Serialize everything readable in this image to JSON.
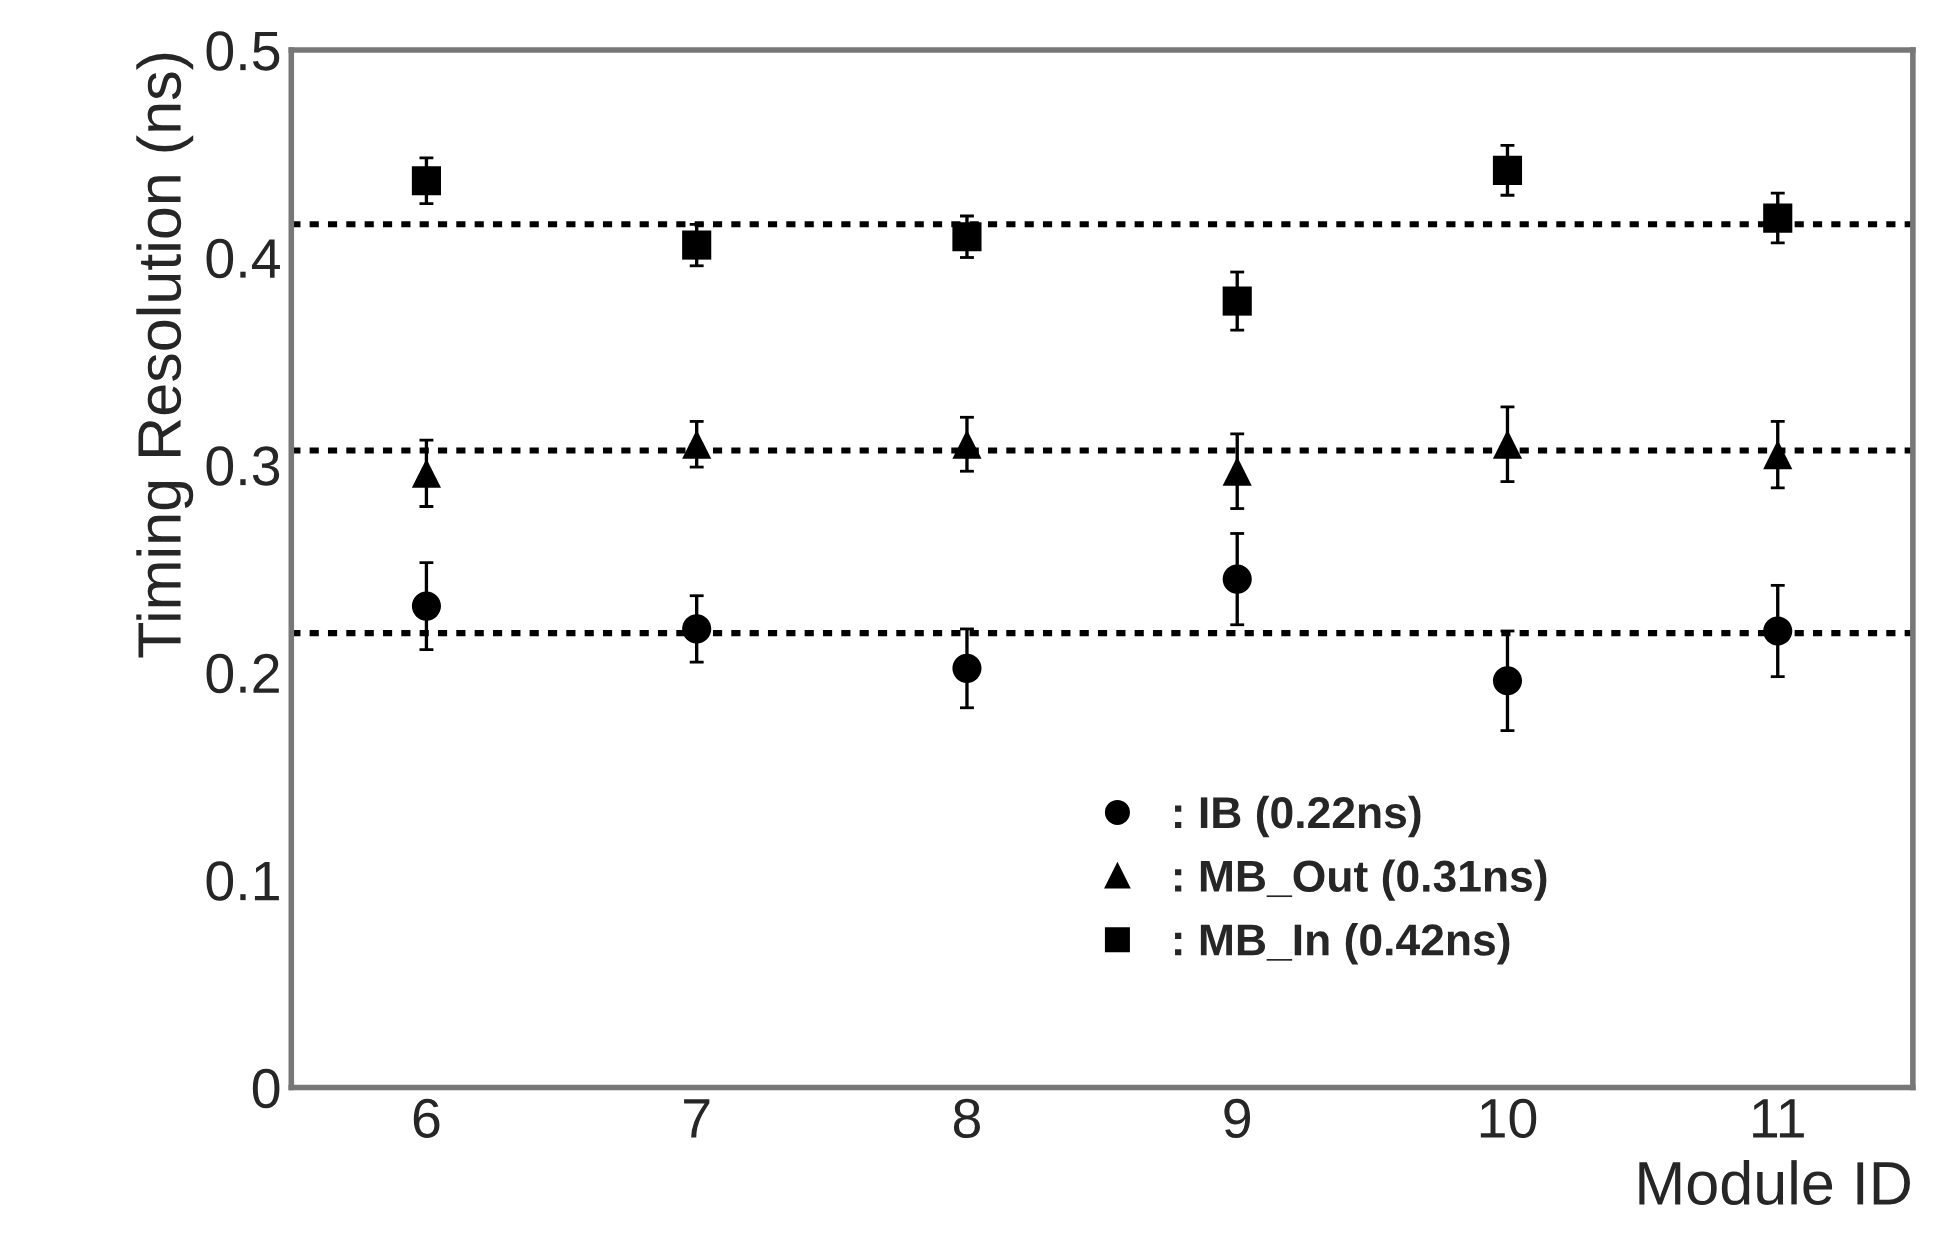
{
  "chart_data": {
    "type": "scatter",
    "xlabel": "Module ID",
    "ylabel": "Timing Resolution (ns)",
    "x": [
      6,
      7,
      8,
      9,
      10,
      11
    ],
    "series": [
      {
        "name": ": IB (0.22ns)",
        "color": "#000000",
        "marker": "circle",
        "values": [
          0.232,
          0.221,
          0.202,
          0.245,
          0.196,
          0.22
        ],
        "errors": [
          0.021,
          0.016,
          0.019,
          0.022,
          0.024,
          0.022
        ]
      },
      {
        "name": ": MB_Out (0.31ns)",
        "color": "#000000",
        "marker": "triangle",
        "values": [
          0.296,
          0.31,
          0.31,
          0.297,
          0.31,
          0.305
        ],
        "errors": [
          0.016,
          0.011,
          0.013,
          0.018,
          0.018,
          0.016
        ]
      },
      {
        "name": ": MB_In (0.42ns)",
        "color": "#000000",
        "marker": "square",
        "values": [
          0.437,
          0.406,
          0.41,
          0.379,
          0.442,
          0.419
        ],
        "errors": [
          0.011,
          0.01,
          0.01,
          0.014,
          0.012,
          0.012
        ]
      }
    ],
    "ref_lines": [
      {
        "axis": "y",
        "value": 0.416,
        "color": "#000000",
        "line_style": "dotted"
      },
      {
        "axis": "y",
        "value": 0.307,
        "color": "#000000",
        "line_style": "dotted"
      },
      {
        "axis": "y",
        "value": 0.219,
        "color": "#000000",
        "line_style": "dotted"
      }
    ],
    "xlim": [
      5.5,
      11.5
    ],
    "xticks": [
      6,
      7,
      8,
      9,
      10,
      11
    ],
    "ylim": [
      0,
      0.5
    ],
    "yticks": [
      0,
      0.1,
      0.2,
      0.3,
      0.4,
      0.5
    ],
    "grid": false,
    "legend": "bottom right"
  }
}
